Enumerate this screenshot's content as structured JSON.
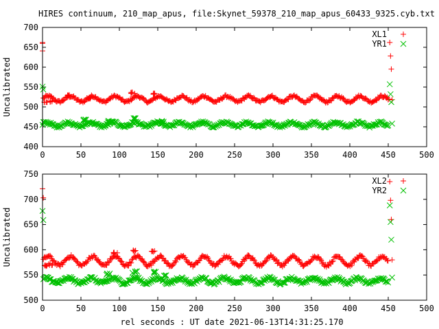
{
  "title": "HIRES continuum, 210_map_apus, file:Skynet_59378_210_map_apus_60433_9325.cyb.txt",
  "xlabel": "rel seconds : UT date 2021-06-13T14:31:25.170",
  "colors": {
    "red": "#ff0000",
    "green": "#00c000"
  },
  "chart_data": [
    {
      "type": "scatter",
      "ylabel": "Uncalibrated",
      "xlim": [
        0,
        500
      ],
      "ylim": [
        400,
        700
      ],
      "xticks": [
        0,
        50,
        100,
        150,
        200,
        250,
        300,
        350,
        400,
        450,
        500
      ],
      "yticks": [
        400,
        450,
        500,
        550,
        600,
        650,
        700
      ],
      "legend_position": "top-right",
      "series": [
        {
          "name": "XL1",
          "color": "red",
          "marker": "plus",
          "base": 520,
          "amp": 7,
          "period": 29,
          "phase": 0,
          "noise": 3,
          "bumps": [
            [
              5,
              512
            ],
            [
              10,
              514
            ],
            [
              33,
              528
            ],
            [
              60,
              522
            ],
            [
              118,
              535
            ],
            [
              145,
              533
            ]
          ],
          "outliers": [
            [
              0,
              660
            ],
            [
              0,
              641
            ],
            [
              0,
              662
            ],
            [
              452,
              662
            ],
            [
              453,
              628
            ],
            [
              454,
              595
            ],
            [
              455,
              518
            ],
            [
              451,
              520
            ]
          ]
        },
        {
          "name": "YR1",
          "color": "green",
          "marker": "cross",
          "base": 456,
          "amp": 5,
          "period": 29,
          "phase": 0.5,
          "noise": 3,
          "bumps": [
            [
              55,
              468
            ],
            [
              88,
              463
            ],
            [
              118,
              470
            ],
            [
              155,
              464
            ]
          ],
          "outliers": [
            [
              0,
              551
            ],
            [
              1,
              544
            ],
            [
              0,
              455
            ],
            [
              452,
              557
            ],
            [
              453,
              532
            ],
            [
              454,
              512
            ],
            [
              455,
              458
            ]
          ]
        }
      ]
    },
    {
      "type": "scatter",
      "ylabel": "Uncalibrated",
      "xlim": [
        0,
        500
      ],
      "ylim": [
        500,
        750
      ],
      "xticks": [
        0,
        50,
        100,
        150,
        200,
        250,
        300,
        350,
        400,
        450,
        500
      ],
      "yticks": [
        500,
        550,
        600,
        650,
        700,
        750
      ],
      "legend_position": "top-right",
      "series": [
        {
          "name": "XL2",
          "color": "red",
          "marker": "plus",
          "base": 578,
          "amp": 9,
          "period": 29,
          "phase": 0,
          "noise": 3,
          "bumps": [
            [
              5,
              569
            ],
            [
              10,
              571
            ],
            [
              95,
              593
            ],
            [
              120,
              597
            ],
            [
              145,
              596
            ]
          ],
          "outliers": [
            [
              0,
              721
            ],
            [
              1,
              703
            ],
            [
              452,
              735
            ],
            [
              453,
              698
            ],
            [
              454,
              660
            ],
            [
              455,
              580
            ]
          ]
        },
        {
          "name": "YR2",
          "color": "green",
          "marker": "cross",
          "base": 539,
          "amp": 5,
          "period": 29,
          "phase": 0.5,
          "noise": 3,
          "bumps": [
            [
              85,
              551
            ],
            [
              120,
              556
            ],
            [
              145,
              555
            ],
            [
              160,
              548
            ]
          ],
          "outliers": [
            [
              0,
              677
            ],
            [
              1,
              659
            ],
            [
              452,
              688
            ],
            [
              453,
              655
            ],
            [
              454,
              620
            ],
            [
              455,
              545
            ]
          ]
        }
      ]
    }
  ]
}
